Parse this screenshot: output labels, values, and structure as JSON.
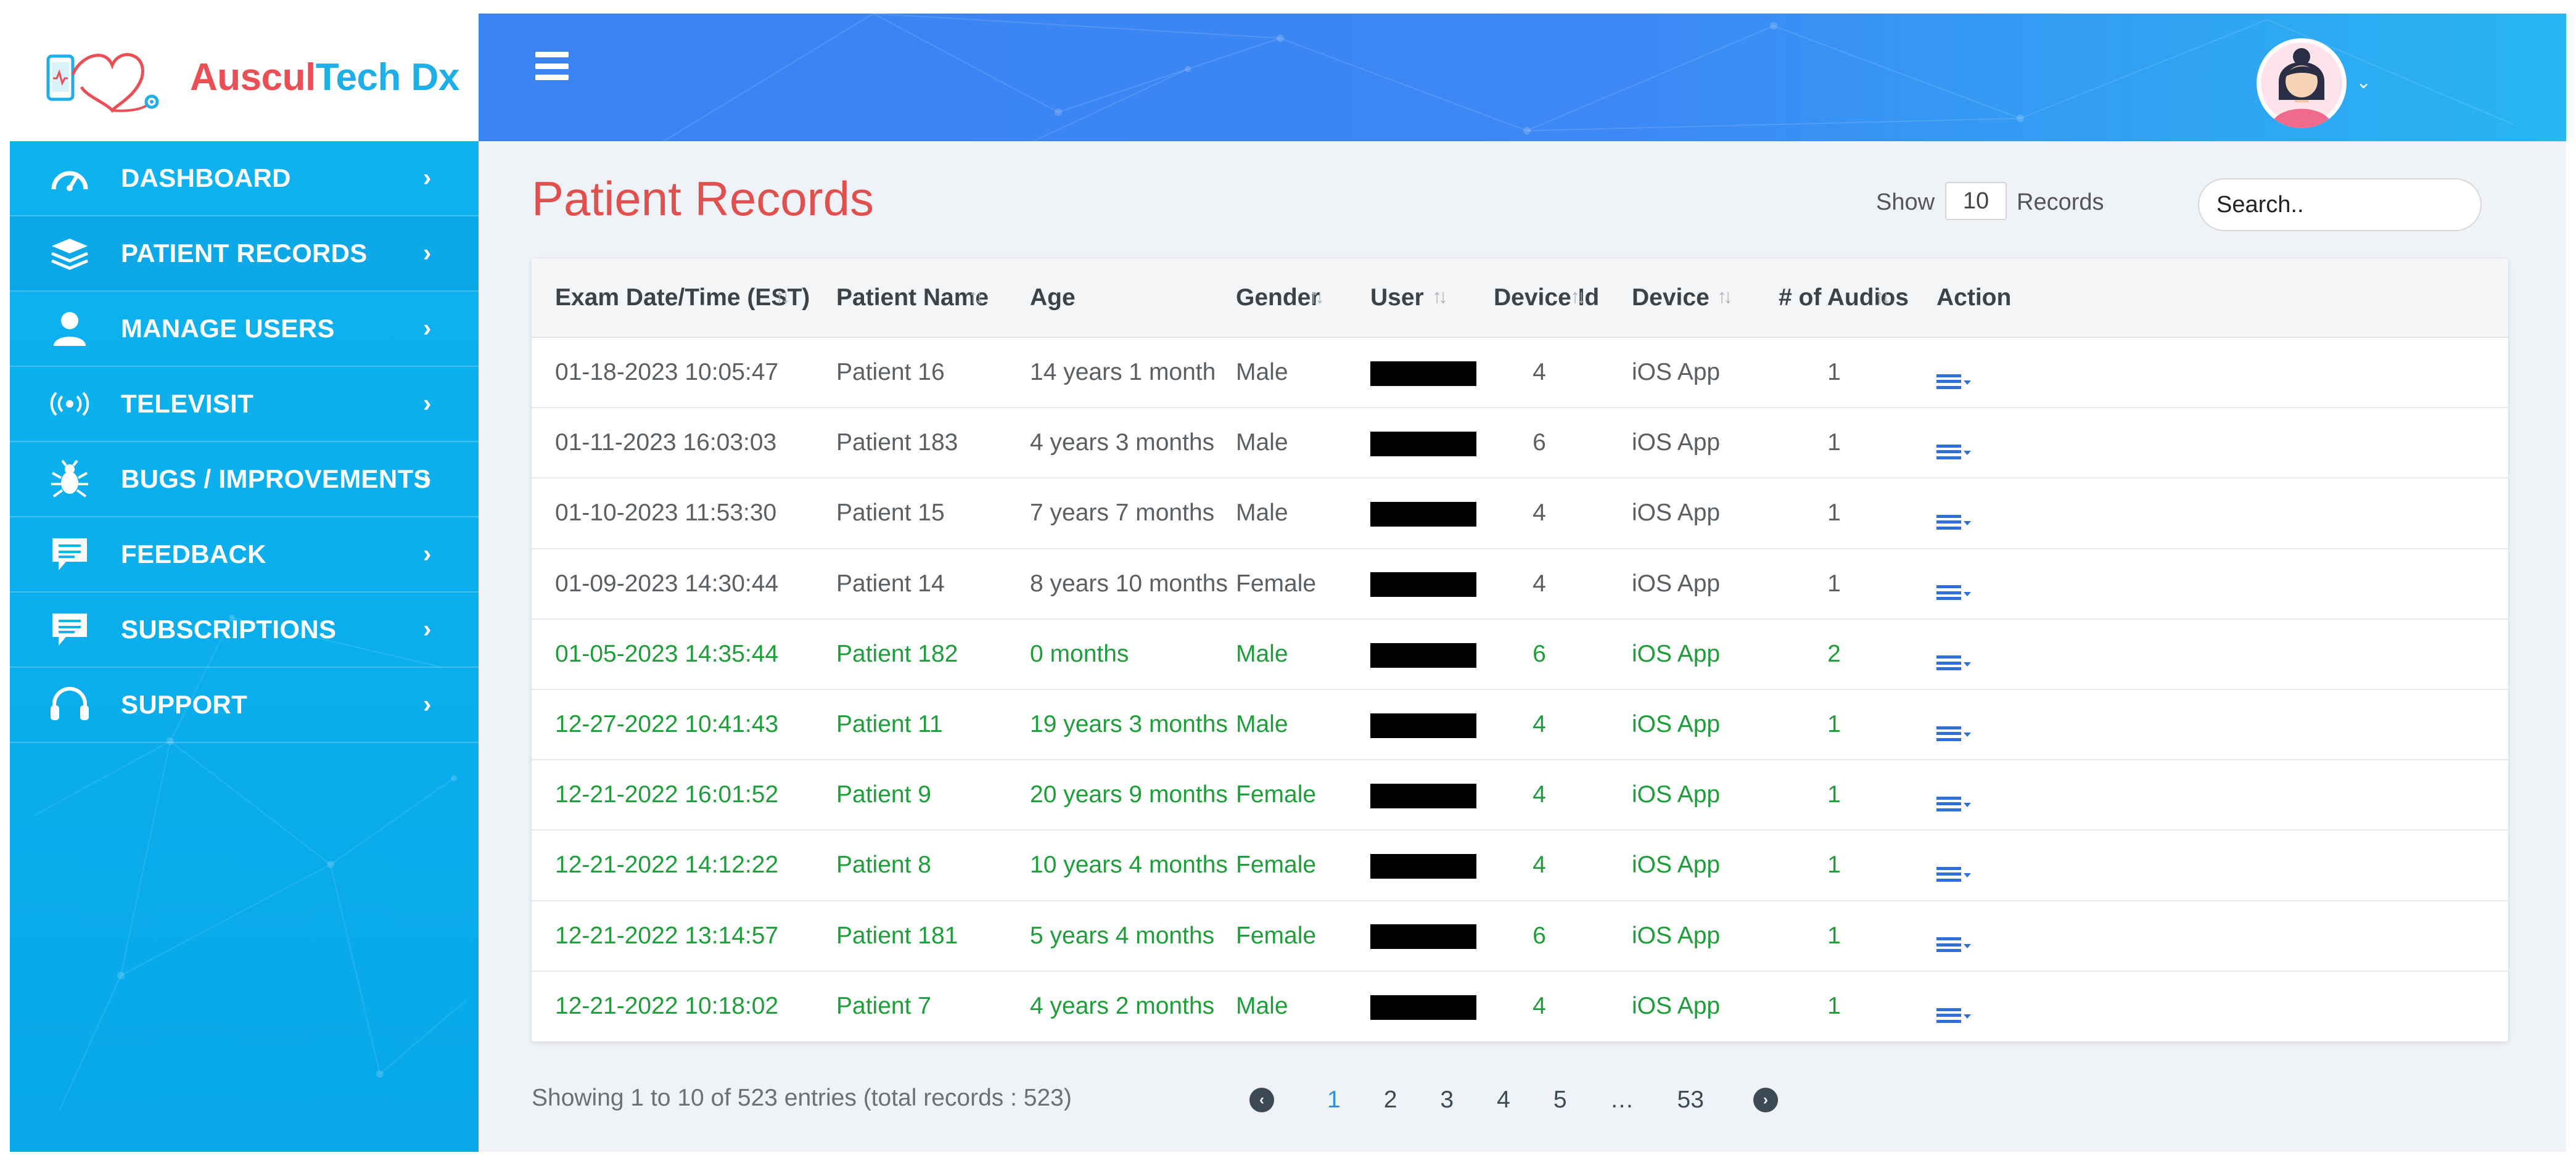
{
  "brand": {
    "name_part1": "Auscul",
    "name_part2": "Tech Dx"
  },
  "sidebar": {
    "items": [
      {
        "label": "DASHBOARD",
        "icon": "gauge-icon",
        "active": false
      },
      {
        "label": "PATIENT RECORDS",
        "icon": "records-stack-icon",
        "active": true
      },
      {
        "label": "MANAGE USERS",
        "icon": "user-icon",
        "active": false
      },
      {
        "label": "TELEVISIT",
        "icon": "broadcast-icon",
        "active": false
      },
      {
        "label": "BUGS / IMPROVEMENTS",
        "icon": "bug-icon",
        "active": false
      },
      {
        "label": "FEEDBACK",
        "icon": "chat-icon",
        "active": false
      },
      {
        "label": "SUBSCRIPTIONS",
        "icon": "chat-icon",
        "active": false
      },
      {
        "label": "SUPPORT",
        "icon": "headset-icon",
        "active": false
      }
    ]
  },
  "page": {
    "title": "Patient Records",
    "show_label": "Show",
    "records_per_page": "10",
    "records_label": "Records",
    "search_placeholder": "Search.."
  },
  "table": {
    "columns": [
      "Exam Date/Time (EST)",
      "Patient Name",
      "Age",
      "Gender",
      "User",
      "Device Id",
      "Device",
      "# of Audios",
      "Action"
    ],
    "rows": [
      {
        "date": "01-18-2023 10:05:47",
        "name": "Patient 16",
        "age": "14 years 1 month",
        "gender": "Male",
        "device_id": "4",
        "device": "iOS App",
        "audios": "1",
        "highlight": false
      },
      {
        "date": "01-11-2023 16:03:03",
        "name": "Patient 183",
        "age": "4 years 3 months",
        "gender": "Male",
        "device_id": "6",
        "device": "iOS App",
        "audios": "1",
        "highlight": false
      },
      {
        "date": "01-10-2023 11:53:30",
        "name": "Patient 15",
        "age": "7 years 7 months",
        "gender": "Male",
        "device_id": "4",
        "device": "iOS App",
        "audios": "1",
        "highlight": false
      },
      {
        "date": "01-09-2023 14:30:44",
        "name": "Patient 14",
        "age": "8 years 10 months",
        "gender": "Female",
        "device_id": "4",
        "device": "iOS App",
        "audios": "1",
        "highlight": false
      },
      {
        "date": "01-05-2023 14:35:44",
        "name": "Patient 182",
        "age": "0 months",
        "gender": "Male",
        "device_id": "6",
        "device": "iOS App",
        "audios": "2",
        "highlight": true
      },
      {
        "date": "12-27-2022 10:41:43",
        "name": "Patient 11",
        "age": "19 years 3 months",
        "gender": "Male",
        "device_id": "4",
        "device": "iOS App",
        "audios": "1",
        "highlight": true
      },
      {
        "date": "12-21-2022 16:01:52",
        "name": "Patient 9",
        "age": "20 years 9 months",
        "gender": "Female",
        "device_id": "4",
        "device": "iOS App",
        "audios": "1",
        "highlight": true
      },
      {
        "date": "12-21-2022 14:12:22",
        "name": "Patient 8",
        "age": "10 years 4 months",
        "gender": "Female",
        "device_id": "4",
        "device": "iOS App",
        "audios": "1",
        "highlight": true
      },
      {
        "date": "12-21-2022 13:14:57",
        "name": "Patient 181",
        "age": "5 years 4 months",
        "gender": "Female",
        "device_id": "6",
        "device": "iOS App",
        "audios": "1",
        "highlight": true
      },
      {
        "date": "12-21-2022 10:18:02",
        "name": "Patient 7",
        "age": "4 years 2 months",
        "gender": "Male",
        "device_id": "4",
        "device": "iOS App",
        "audios": "1",
        "highlight": true
      }
    ]
  },
  "footer": {
    "entries_info": "Showing 1 to 10 of 523 entries (total records : 523)",
    "pages": [
      "1",
      "2",
      "3",
      "4",
      "5",
      "…",
      "53"
    ],
    "current_page": "1"
  },
  "colors": {
    "sidebar_bg": "#0fb4ef",
    "header_bg": "#3d88f5",
    "title": "#e0504f",
    "highlight_row_text": "#1f9d3a",
    "action_icon": "#2f6fd8"
  }
}
